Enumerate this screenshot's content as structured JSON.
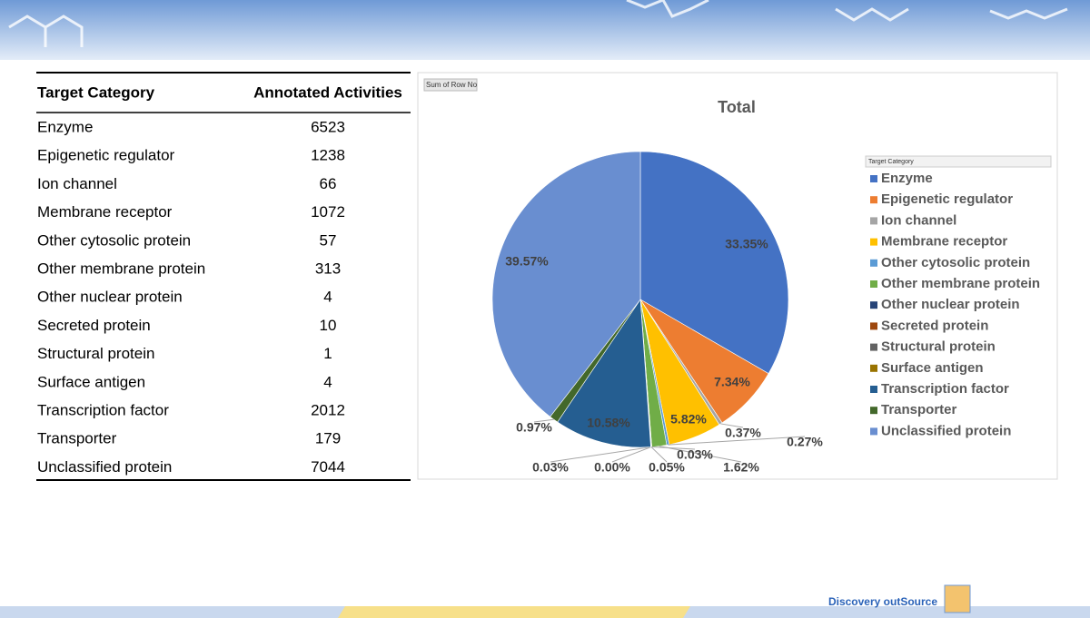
{
  "table": {
    "header": [
      "Target Category",
      "Annotated Activities"
    ],
    "rows": [
      [
        "Enzyme",
        6523
      ],
      [
        "Epigenetic regulator",
        1238
      ],
      [
        "Ion channel",
        66
      ],
      [
        "Membrane receptor",
        1072
      ],
      [
        "Other cytosolic protein",
        57
      ],
      [
        "Other membrane protein",
        313
      ],
      [
        "Other nuclear protein",
        4
      ],
      [
        "Secreted protein",
        10
      ],
      [
        "Structural protein",
        1
      ],
      [
        "Surface antigen",
        4
      ],
      [
        "Transcription factor",
        2012
      ],
      [
        "Transporter",
        179
      ],
      [
        "Unclassified protein",
        7044
      ]
    ]
  },
  "chart_data": {
    "type": "pie",
    "title": "Total",
    "field_button": "Sum of Row No",
    "legend_title": "Target Category",
    "legend": "right",
    "categories": [
      "Enzyme",
      "Epigenetic regulator",
      "Ion channel",
      "Membrane receptor",
      "Other cytosolic protein",
      "Other membrane protein",
      "Other nuclear protein",
      "Secreted protein",
      "Structural protein",
      "Surface antigen",
      "Transcription factor",
      "Transporter",
      "Unclassified protein"
    ],
    "values": [
      33.35,
      7.34,
      0.37,
      5.82,
      0.27,
      1.62,
      0.03,
      0.05,
      0,
      0.03,
      10.58,
      0.97,
      39.57
    ],
    "value_labels": [
      "33.35%",
      "7.34%",
      "0.37%",
      "5.82%",
      "0.27%",
      "1.62%",
      "0.03%",
      "0.05%",
      "0.00%",
      "0.03%",
      "10.58%",
      "0.97%",
      "39.57%"
    ],
    "colors": [
      "#4472c4",
      "#ed7d31",
      "#a5a5a5",
      "#ffc000",
      "#5b9bd5",
      "#70ad47",
      "#264478",
      "#9e480e",
      "#636363",
      "#997300",
      "#255e91",
      "#43682b",
      "#698ed0"
    ]
  },
  "footer": {
    "brand": "Discovery outSource"
  }
}
